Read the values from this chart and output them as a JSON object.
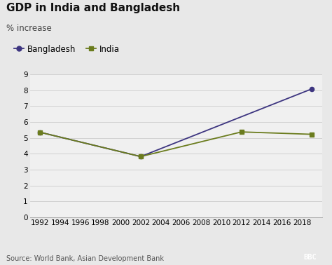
{
  "title": "GDP in India and Bangladesh",
  "subtitle": "% increase",
  "source": "Source: World Bank, Asian Development Bank",
  "bangladesh": {
    "label": "Bangladesh",
    "color": "#3d3580",
    "marker": "o",
    "x": [
      1992,
      2002,
      2019
    ],
    "y": [
      5.35,
      3.82,
      8.08
    ]
  },
  "india": {
    "label": "India",
    "color": "#6b7c1e",
    "marker": "s",
    "x": [
      1992,
      2002,
      2012,
      2019
    ],
    "y": [
      5.35,
      3.82,
      5.37,
      5.22
    ]
  },
  "xlim": [
    1991,
    2020
  ],
  "ylim": [
    0,
    9
  ],
  "xticks": [
    1992,
    1994,
    1996,
    1998,
    2000,
    2002,
    2004,
    2006,
    2008,
    2010,
    2012,
    2014,
    2016,
    2018
  ],
  "yticks": [
    0,
    1,
    2,
    3,
    4,
    5,
    6,
    7,
    8,
    9
  ],
  "bg_color": "#e8e8e8",
  "plot_bg_color": "#f0f0f0",
  "grid_color": "#cccccc",
  "title_fontsize": 11,
  "subtitle_fontsize": 8.5,
  "tick_fontsize": 7.5,
  "legend_fontsize": 8.5,
  "source_fontsize": 7
}
